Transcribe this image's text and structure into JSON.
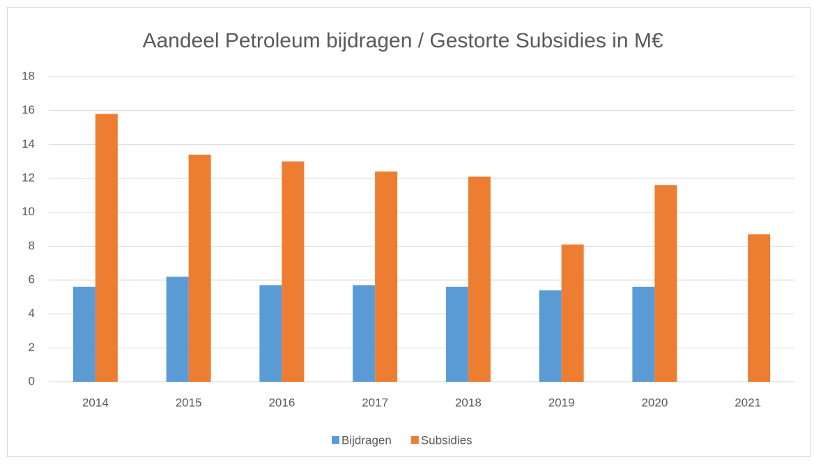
{
  "chart_data": {
    "type": "bar",
    "title": "Aandeel Petroleum bijdragen / Gestorte Subsidies in M€",
    "categories": [
      "2014",
      "2015",
      "2016",
      "2017",
      "2018",
      "2019",
      "2020",
      "2021"
    ],
    "series": [
      {
        "name": "Bijdragen",
        "color": "#5b9bd5",
        "values": [
          5.6,
          6.2,
          5.7,
          5.7,
          5.6,
          5.4,
          5.6,
          null
        ]
      },
      {
        "name": "Subsidies",
        "color": "#ed7d31",
        "values": [
          15.8,
          13.4,
          13.0,
          12.4,
          12.1,
          8.1,
          11.6,
          8.7
        ]
      }
    ],
    "ylim": [
      0,
      18
    ],
    "yticks": [
      0,
      2,
      4,
      6,
      8,
      10,
      12,
      14,
      16,
      18
    ],
    "grid": true,
    "legend": "bottom"
  }
}
